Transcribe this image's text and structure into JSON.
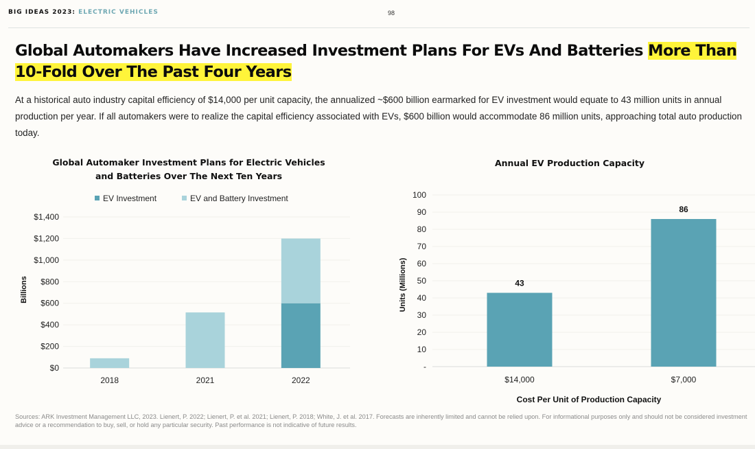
{
  "header": {
    "brand": "BIG IDEAS 2023",
    "separator": ":",
    "section": "ELECTRIC VEHICLES",
    "page_number": "98"
  },
  "headline": {
    "text": "Global Automakers Have Increased Investment Plans For EVs And Batteries ",
    "highlight": "More Than 10-Fold Over The Past Four Years",
    "highlight_color": "#fff43a"
  },
  "intro": "At a historical auto industry capital efficiency of $14,000 per unit capacity, the annualized ~$600 billion earmarked for EV investment would equate to 43 million units in annual production per year. If all automakers were to realize the capital efficiency associated with EVs, $600 billion would accommodate 86 million units, approaching total auto production today.",
  "footer": "Sources: ARK Investment Management LLC, 2023. Lienert, P. 2022; Lienert, P. et al. 2021; Lienert, P. 2018; White, J. et al. 2017. Forecasts are inherently limited and cannot be relied upon. For informational purposes only and should not be considered investment advice or a recommendation to buy, sell, or hold any particular security. Past performance is not indicative of future results.",
  "chart_data": [
    {
      "type": "bar",
      "stacked": true,
      "title_line1": "Global Automaker Investment Plans for Electric Vehicles",
      "title_line2": "and Batteries Over The Next Ten Years",
      "xlabel": "",
      "ylabel": "Billions",
      "categories": [
        "2018",
        "2021",
        "2022"
      ],
      "series": [
        {
          "name": "EV Investment",
          "color": "#5aa3b4",
          "values": [
            0,
            0,
            600
          ]
        },
        {
          "name": "EV and Battery Investment",
          "color": "#a9d3db",
          "values": [
            90,
            515,
            600
          ]
        }
      ],
      "totals": [
        90,
        515,
        1200
      ],
      "ylim": [
        0,
        1400
      ],
      "yticks": [
        0,
        200,
        400,
        600,
        800,
        1000,
        1200,
        1400
      ],
      "ytick_labels": [
        "$0",
        "$200",
        "$400",
        "$600",
        "$800",
        "$1,000",
        "$1,200",
        "$1,400"
      ],
      "grid": true,
      "legend": "top-center"
    },
    {
      "type": "bar",
      "title": "Annual EV Production Capacity",
      "xlabel": "Cost Per Unit of Production Capacity",
      "ylabel": "Units (Millions)",
      "categories": [
        "$14,000",
        "$7,000"
      ],
      "values": [
        43,
        86
      ],
      "data_labels": [
        "43",
        "86"
      ],
      "color": "#5aa3b4",
      "ylim": [
        0,
        100
      ],
      "yticks": [
        0,
        10,
        20,
        30,
        40,
        50,
        60,
        70,
        80,
        90,
        100
      ],
      "ytick_labels": [
        "-",
        "10",
        "20",
        "30",
        "40",
        "50",
        "60",
        "70",
        "80",
        "90",
        "100"
      ],
      "grid": true,
      "legend": "none"
    }
  ]
}
